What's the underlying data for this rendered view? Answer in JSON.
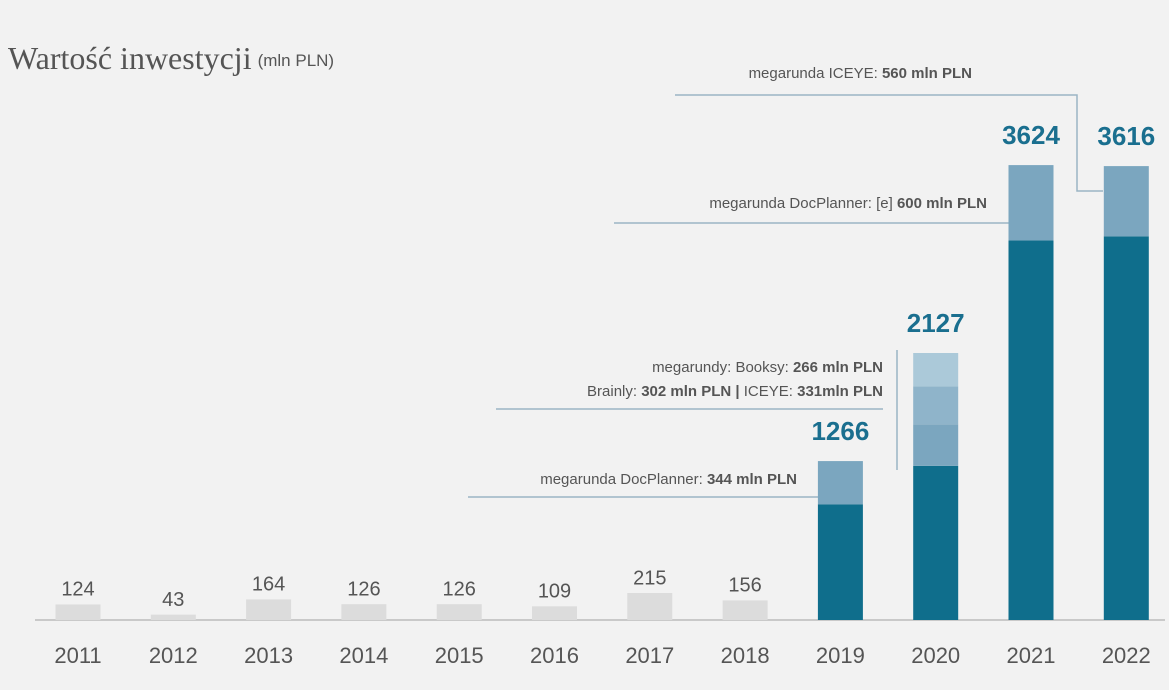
{
  "chart_data": {
    "type": "stacked_bar",
    "title": "Wartość inwestycji",
    "title_unit": "(mln PLN)",
    "categories": [
      "2011",
      "2012",
      "2013",
      "2014",
      "2015",
      "2016",
      "2017",
      "2018",
      "2019",
      "2020",
      "2021",
      "2022"
    ],
    "ylim": [
      0,
      3800
    ],
    "series": [
      {
        "colors": [
          "#dcdcdc",
          "#dcdcdc",
          "#dcdcdc",
          "#dcdcdc",
          "#dcdcdc",
          "#dcdcdc",
          "#dcdcdc",
          "#dcdcdc",
          "#0f6e8c",
          "#0f6e8c",
          "#0f6e8c",
          "#0f6e8c"
        ],
        "values": [
          124,
          43,
          164,
          126,
          126,
          109,
          215,
          156,
          922,
          1228,
          3024,
          3056
        ]
      },
      {
        "color": "#7ba6bf",
        "values": [
          null,
          null,
          null,
          null,
          null,
          null,
          null,
          null,
          344,
          331,
          600,
          560
        ]
      },
      {
        "color": "#8fb4ca",
        "values": [
          null,
          null,
          null,
          null,
          null,
          null,
          null,
          null,
          null,
          302,
          null,
          null
        ]
      },
      {
        "color": "#abc9d9",
        "values": [
          null,
          null,
          null,
          null,
          null,
          null,
          null,
          null,
          null,
          266,
          null,
          null
        ]
      }
    ],
    "totals": [
      null,
      null,
      null,
      null,
      null,
      null,
      null,
      null,
      1266,
      2127,
      3624,
      3616
    ],
    "annotations": [
      {
        "lines": [
          [
            {
              "text": "megarunda ICEYE: "
            },
            {
              "text": "560 mln PLN",
              "bold": true
            }
          ]
        ]
      },
      {
        "lines": [
          [
            {
              "text": "megarunda DocPlanner: [e] "
            },
            {
              "text": "600 mln PLN",
              "bold": true
            }
          ]
        ]
      },
      {
        "lines": [
          [
            {
              "text": "megarundy: Booksy: "
            },
            {
              "text": "266 mln PLN",
              "bold": true
            }
          ],
          [
            {
              "text": "Brainly: "
            },
            {
              "text": "302 mln PLN | ",
              "bold": true
            },
            {
              "text": "ICEYE: "
            },
            {
              "text": "331mln PLN",
              "bold": true
            }
          ]
        ]
      },
      {
        "lines": [
          [
            {
              "text": "megarunda DocPlanner: "
            },
            {
              "text": "344 mln PLN",
              "bold": true
            }
          ]
        ]
      }
    ]
  }
}
